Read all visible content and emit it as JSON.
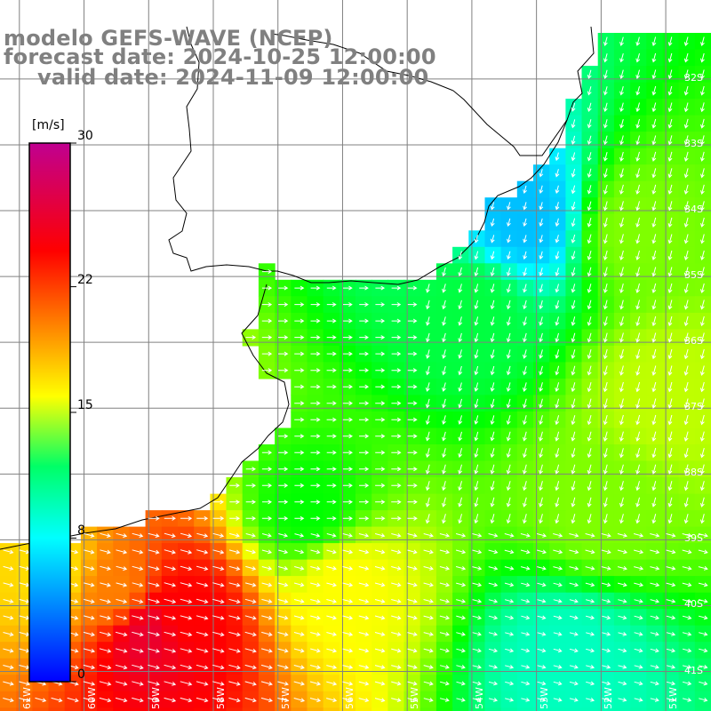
{
  "title": {
    "model": "modelo GEFS-WAVE (NCEP)",
    "forecast": "forecast date: 2024-10-25 12:00:00",
    "valid": "valid date: 2024-11-09 12:00:00"
  },
  "colorbar": {
    "unit": "[m/s]",
    "min": 0,
    "max": 30,
    "ticks": [
      {
        "label": "30",
        "value": 30
      },
      {
        "label": "22",
        "value": 22
      },
      {
        "label": "15",
        "value": 15
      },
      {
        "label": "8",
        "value": 8
      },
      {
        "label": "0",
        "value": 0
      }
    ],
    "colors": [
      "#0000ff",
      "#00ffff",
      "#00ff00",
      "#ffff00",
      "#ff0000",
      "#c00090"
    ],
    "stops": [
      0,
      8,
      12,
      16,
      24,
      30
    ]
  },
  "grid": {
    "lat_labels": [
      {
        "label": "32S",
        "lat": -32
      },
      {
        "label": "33S",
        "lat": -33
      },
      {
        "label": "34S",
        "lat": -34
      },
      {
        "label": "35S",
        "lat": -35
      },
      {
        "label": "36S",
        "lat": -36
      },
      {
        "label": "37S",
        "lat": -37
      },
      {
        "label": "38S",
        "lat": -38
      },
      {
        "label": "39S",
        "lat": -39
      },
      {
        "label": "40S",
        "lat": -40
      },
      {
        "label": "41S",
        "lat": -41
      }
    ],
    "lon_labels": [
      {
        "label": "61W",
        "lon": -61
      },
      {
        "label": "60W",
        "lon": -60
      },
      {
        "label": "59W",
        "lon": -59
      },
      {
        "label": "58W",
        "lon": -58
      },
      {
        "label": "57W",
        "lon": -57
      },
      {
        "label": "56W",
        "lon": -56
      },
      {
        "label": "55W",
        "lon": -55
      },
      {
        "label": "54W",
        "lon": -54
      },
      {
        "label": "53W",
        "lon": -53
      },
      {
        "label": "52W",
        "lon": -52
      },
      {
        "label": "51W",
        "lon": -51
      }
    ]
  },
  "map_extent": {
    "lon_min": -61.3,
    "lon_max": -50.3,
    "lat_min": -41.6,
    "lat_max": -30.8
  },
  "colors": {
    "land": "#ffffff",
    "coast": "#000000",
    "grid": "#808080",
    "arrow": "#ffffff",
    "title": "#808080"
  },
  "wind_field": {
    "description_values_m_s": [
      {
        "lon": -59.0,
        "lat": -40.4,
        "speed": 26
      },
      {
        "lon": -58.5,
        "lat": -40.2,
        "speed": 24
      },
      {
        "lon": -59.5,
        "lat": -39.8,
        "speed": 20
      },
      {
        "lon": -60.5,
        "lat": -39.5,
        "speed": 17
      },
      {
        "lon": -56.0,
        "lat": -39.6,
        "speed": 16
      },
      {
        "lon": -56.5,
        "lat": -38.6,
        "speed": 12
      },
      {
        "lon": -54.0,
        "lat": -35.5,
        "speed": 11
      },
      {
        "lon": -53.2,
        "lat": -34.1,
        "speed": 6
      },
      {
        "lon": -51.5,
        "lat": -34.3,
        "speed": 14
      },
      {
        "lon": -51.0,
        "lat": -36.8,
        "speed": 15
      },
      {
        "lon": -52.0,
        "lat": -38.5,
        "speed": 14
      },
      {
        "lon": -52.5,
        "lat": -40.8,
        "speed": 9
      }
    ]
  }
}
